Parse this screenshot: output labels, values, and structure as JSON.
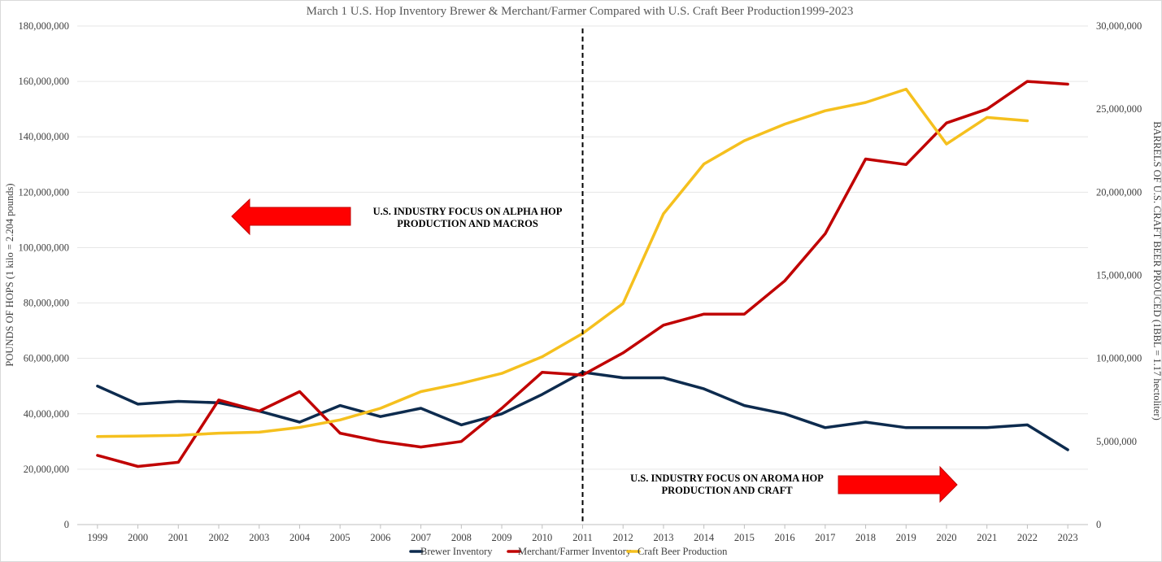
{
  "chart_data": {
    "type": "line",
    "title": "March 1 U.S. Hop Inventory Brewer & Merchant/Farmer Compared with U.S. Craft Beer Production1999-2023",
    "ylabel": "POUNDS OF HOPS  (1 kilo = 2.204 pounds)",
    "y2label": "BARRELS OF U.S. CRAFT BEER PROUCED  (1BBL = 1.17 hectoliter)",
    "ylim": [
      0,
      180000000
    ],
    "y2lim": [
      0,
      30000000
    ],
    "yticks": [
      "0",
      "20,000,000",
      "40,000,000",
      "60,000,000",
      "80,000,000",
      "100,000,000",
      "120,000,000",
      "140,000,000",
      "160,000,000",
      "180,000,000"
    ],
    "y2ticks": [
      "0",
      "5,000,000",
      "10,000,000",
      "15,000,000",
      "20,000,000",
      "25,000,000",
      "30,000,000"
    ],
    "categories": [
      "1999",
      "2000",
      "2001",
      "2002",
      "2003",
      "2004",
      "2005",
      "2006",
      "2007",
      "2008",
      "2009",
      "2010",
      "2011",
      "2012",
      "2013",
      "2014",
      "2015",
      "2016",
      "2017",
      "2018",
      "2019",
      "2020",
      "2021",
      "2022",
      "2023"
    ],
    "grid": true,
    "legend_position": "bottom",
    "series": [
      {
        "name": "Brewer Inventory",
        "axis": "left",
        "color": "#0d2b4e",
        "values": [
          50000000,
          43500000,
          44500000,
          44000000,
          41000000,
          37000000,
          43000000,
          39000000,
          42000000,
          36000000,
          40000000,
          47000000,
          55000000,
          53000000,
          53000000,
          49000000,
          43000000,
          40000000,
          35000000,
          37000000,
          35000000,
          35000000,
          35000000,
          36000000,
          27000000
        ]
      },
      {
        "name": "Merchant/Farmer Inventory",
        "axis": "left",
        "color": "#c00000",
        "values": [
          25000000,
          21000000,
          22500000,
          45000000,
          41000000,
          48000000,
          33000000,
          30000000,
          28000000,
          30000000,
          42000000,
          55000000,
          54000000,
          62000000,
          72000000,
          76000000,
          76000000,
          88000000,
          105000000,
          132000000,
          130000000,
          145000000,
          150000000,
          160000000,
          159000000
        ]
      },
      {
        "name": "Craft Beer Production",
        "axis": "right",
        "color": "#f5c01e",
        "values": [
          5300000,
          5330000,
          5370000,
          5500000,
          5560000,
          5850000,
          6300000,
          7000000,
          8000000,
          8500000,
          9100000,
          10100000,
          11500000,
          13300000,
          18700000,
          21700000,
          23100000,
          24100000,
          24900000,
          25400000,
          26200000,
          22900000,
          24500000,
          24300000,
          null
        ]
      }
    ],
    "vertical_marker": {
      "category": "2011",
      "color": "#000000",
      "style": "dashed"
    },
    "annotations": [
      {
        "lines": [
          "U.S. INDUSTRY FOCUS ON ALPHA HOP",
          "PRODUCTION AND MACROS"
        ],
        "arrow": "left",
        "arrow_color": "#ff0000"
      },
      {
        "lines": [
          "U.S. INDUSTRY FOCUS ON AROMA HOP",
          "PRODUCTION AND CRAFT"
        ],
        "arrow": "right",
        "arrow_color": "#ff0000"
      }
    ]
  }
}
